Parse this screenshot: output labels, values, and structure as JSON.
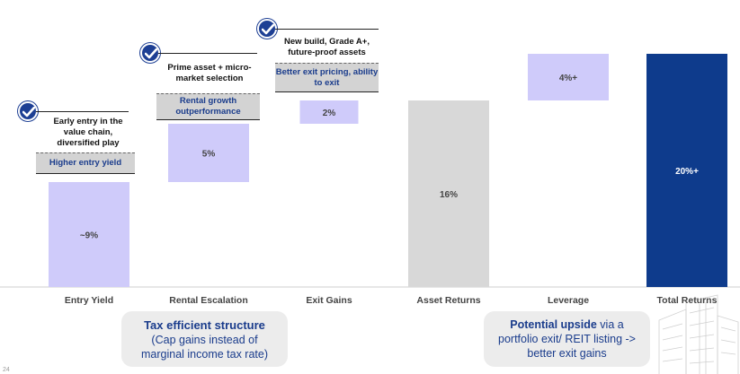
{
  "chart_data": {
    "type": "waterfall",
    "categories": [
      "Entry Yield",
      "Rental Escalation",
      "Exit Gains",
      "Asset Returns",
      "Leverage",
      "Total Returns"
    ],
    "values": [
      9,
      5,
      2,
      16,
      4,
      20
    ],
    "value_labels": [
      "~9%",
      "5%",
      "2%",
      "16%",
      "4%+",
      "20%+"
    ],
    "ylim": [
      0,
      22
    ]
  },
  "annotations": [
    {
      "note": "Early entry in the value chain, diversified play",
      "tag": "Higher entry yield"
    },
    {
      "note": "Prime asset + micro-market selection",
      "tag": "Rental growth outperformance"
    },
    {
      "note": "New build, Grade A+, future-proof assets",
      "tag": "Better exit pricing, ability to exit"
    }
  ],
  "boxes": {
    "tax": {
      "bold": "Tax efficient structure",
      "rest": "(Cap gains instead of marginal income tax rate)"
    },
    "upside": {
      "bold": "Potential upside",
      "rest1": " via a",
      "rest2": "portfolio exit/ REIT listing -> better exit gains"
    }
  },
  "page_number": "24",
  "colors": {
    "light": "#cfcbfa",
    "grey": "#d8d8d8",
    "navy": "#0e3b8c",
    "text_blue": "#1a3c8c"
  }
}
